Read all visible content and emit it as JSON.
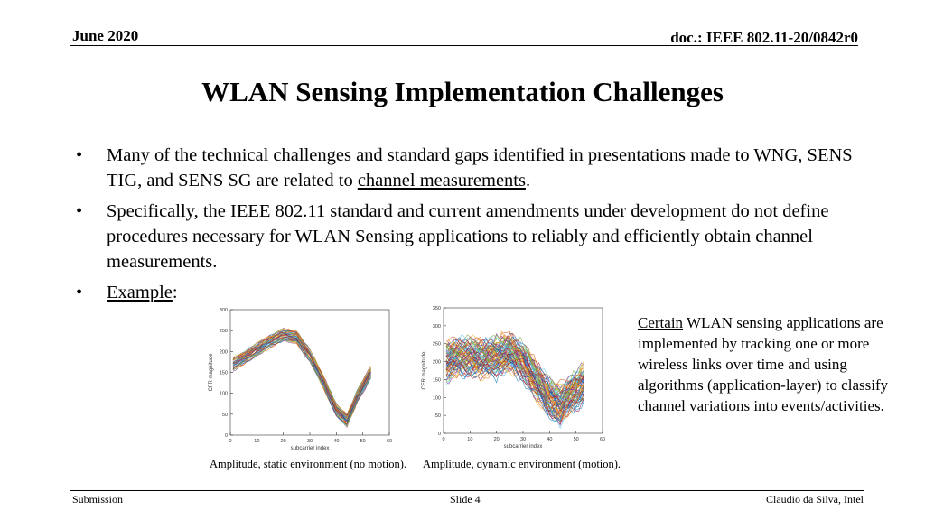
{
  "header": {
    "date": "June 2020",
    "doc": "doc.: IEEE 802.11-20/0842r0"
  },
  "title": "WLAN Sensing Implementation Challenges",
  "bullets": {
    "b1_text": "Many of the technical challenges and standard gaps identified in presentations made to WNG, SENS TIG, and SENS SG are related to ",
    "b1_link": "channel measurements",
    "b1_end": ".",
    "b2_text": "Specifically, the IEEE 802.11 standard and current amendments under development do not define procedures necessary for WLAN Sensing applications to reliably and efficiently obtain channel measurements.",
    "b3_link": "Example",
    "b3_end": ":"
  },
  "side_note": {
    "lead": "Certain",
    "rest": " WLAN sensing applications are implemented by tracking one or more wireless links over time and using algorithms (application-layer) to classify channel variations into events/activities."
  },
  "captions": {
    "left": "Amplitude, static environment (no motion).",
    "right": "Amplitude, dynamic environment (motion)."
  },
  "footer": {
    "left": "Submission",
    "center": "Slide 4",
    "right": "Claudio da Silva, Intel"
  },
  "chart_data": [
    {
      "type": "line",
      "xlabel": "subcarrier index",
      "ylabel": "CFR magnitude",
      "xlim": [
        0,
        60
      ],
      "ylim": [
        0,
        300
      ],
      "xticks": [
        "0",
        "10",
        "20",
        "30",
        "40",
        "50",
        "60"
      ],
      "yticks": [
        "0",
        "50",
        "100",
        "150",
        "200",
        "250",
        "300"
      ],
      "series_count_shown": "many",
      "x": [
        1,
        5,
        10,
        15,
        20,
        25,
        30,
        35,
        40,
        44,
        48,
        53
      ],
      "y_mean": [
        170,
        185,
        205,
        225,
        240,
        235,
        190,
        130,
        60,
        35,
        95,
        150
      ]
    },
    {
      "type": "line",
      "xlabel": "subcarrier index",
      "ylabel": "CFR magnitude",
      "xlim": [
        0,
        60
      ],
      "ylim": [
        0,
        350
      ],
      "xticks": [
        "0",
        "10",
        "20",
        "30",
        "40",
        "50",
        "60"
      ],
      "yticks": [
        "0",
        "50",
        "100",
        "150",
        "200",
        "250",
        "300",
        "350"
      ],
      "series_count_shown": "many",
      "x": [
        1,
        5,
        10,
        15,
        20,
        25,
        30,
        35,
        40,
        44,
        48,
        53
      ],
      "y_mean": [
        200,
        215,
        215,
        210,
        215,
        230,
        200,
        150,
        100,
        80,
        110,
        140
      ]
    }
  ]
}
